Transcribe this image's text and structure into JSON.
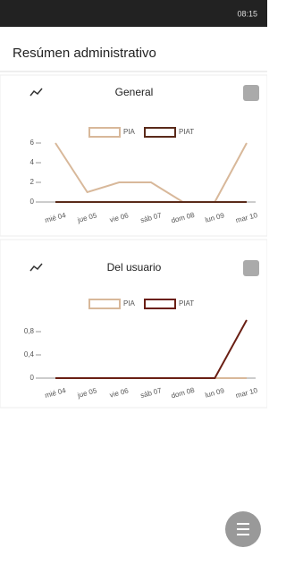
{
  "status_bar": {
    "time": "08:15"
  },
  "header": {
    "title": "Resúmen administrativo"
  },
  "chart_data": [
    {
      "type": "line",
      "title": "General",
      "categories": [
        "mié 04",
        "jue 05",
        "vie 06",
        "sáb 07",
        "dom 08",
        "lun 09",
        "mar 10"
      ],
      "series": [
        {
          "name": "PIA",
          "color": "#d8b89a",
          "values": [
            6,
            1,
            2,
            2,
            0,
            0,
            6
          ]
        },
        {
          "name": "PIAT",
          "color": "#5a2a1a",
          "values": [
            0,
            0,
            0,
            0,
            0,
            0,
            0
          ]
        }
      ],
      "ylim": [
        0,
        6
      ],
      "yticks": [
        0,
        2,
        4,
        6
      ]
    },
    {
      "type": "line",
      "title": "Del usuario",
      "categories": [
        "mié 04",
        "jue 05",
        "vie 06",
        "sáb 07",
        "dom 08",
        "lun 09",
        "mar 10"
      ],
      "series": [
        {
          "name": "PIA",
          "color": "#d8b89a",
          "values": [
            0,
            0,
            0,
            0,
            0,
            0,
            0
          ]
        },
        {
          "name": "PIAT",
          "color": "#6a1f14",
          "values": [
            0,
            0,
            0,
            0,
            0,
            0,
            1
          ]
        }
      ],
      "ylim": [
        0,
        1
      ],
      "yticks": [
        0,
        {
          "value": 0.4,
          "label": "0,4"
        },
        {
          "value": 0.8,
          "label": "0,8"
        }
      ]
    }
  ]
}
